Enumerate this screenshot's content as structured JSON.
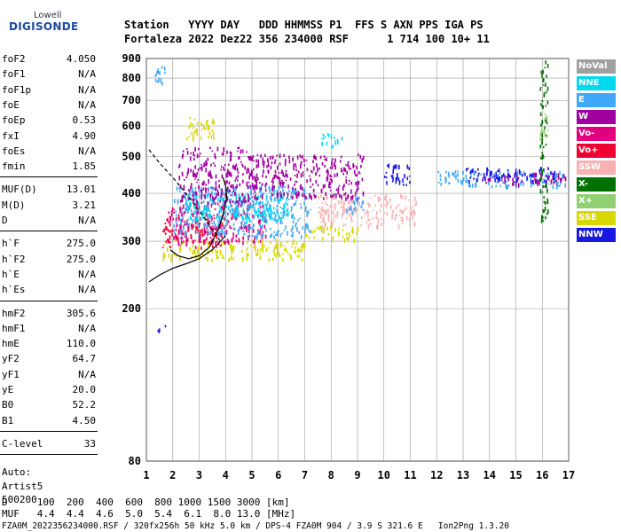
{
  "logo": {
    "top": "Lowell",
    "main": "DIGISONDE"
  },
  "header": {
    "line1": "Station   YYYY DAY   DDD HHMMSS P1  FFS S AXN PPS IGA PS",
    "line2": "Fortaleza 2022 Dez22 356 234000 RSF      1 714 100 10+ 11"
  },
  "params": {
    "g1": [
      [
        "foF2",
        "4.050"
      ],
      [
        "foF1",
        "N/A"
      ],
      [
        "foF1p",
        "N/A"
      ],
      [
        "foE",
        "N/A"
      ],
      [
        "foEp",
        "0.53"
      ],
      [
        "fxI",
        "4.90"
      ],
      [
        "foEs",
        "N/A"
      ],
      [
        "fmin",
        "1.85"
      ]
    ],
    "g2": [
      [
        "MUF(D)",
        "13.01"
      ],
      [
        "M(D)",
        "3.21"
      ],
      [
        "D",
        "N/A"
      ]
    ],
    "g3": [
      [
        "h`F",
        "275.0"
      ],
      [
        "h`F2",
        "275.0"
      ],
      [
        "h`E",
        "N/A"
      ],
      [
        "h`Es",
        "N/A"
      ]
    ],
    "g4": [
      [
        "hmF2",
        "305.6"
      ],
      [
        "hmF1",
        "N/A"
      ],
      [
        "hmE",
        "110.0"
      ],
      [
        "yF2",
        "64.7"
      ],
      [
        "yF1",
        "N/A"
      ],
      [
        "yE",
        "20.0"
      ],
      [
        "B0",
        "52.2"
      ],
      [
        "B1",
        "4.50"
      ]
    ],
    "g5": [
      [
        "C-level",
        "33"
      ]
    ],
    "auto": [
      "Auto:",
      "Artist5",
      "500200"
    ]
  },
  "legend": [
    {
      "label": "NoVal",
      "color": "#a0a0a0"
    },
    {
      "label": "NNE",
      "color": "#00d8f0"
    },
    {
      "label": "E",
      "color": "#40a8f8"
    },
    {
      "label": "W",
      "color": "#a000a0"
    },
    {
      "label": "Vo-",
      "color": "#e00080"
    },
    {
      "label": "Vo+",
      "color": "#f00030"
    },
    {
      "label": "SSW",
      "color": "#f8b0b0"
    },
    {
      "label": "X-",
      "color": "#007000"
    },
    {
      "label": "X+",
      "color": "#90d070"
    },
    {
      "label": "SSE",
      "color": "#d8d800"
    },
    {
      "label": "NNW",
      "color": "#1818e0"
    }
  ],
  "footer": {
    "d_line": "D     100  200  400  600  800 1000 1500 3000 [km]",
    "muf_line": "MUF   4.4  4.4  4.6  5.0  5.4  6.1  8.0 13.0 [MHz]",
    "info_line": "FZA0M_2022356234000.RSF / 320fx256h 50 kHz 5.0 km / DPS-4 FZA0M 904 / 3.9 S 321.6 E   Ion2Png 1.3.20"
  },
  "chart_data": {
    "type": "scatter",
    "x_ticks": [
      1,
      2,
      3,
      4,
      5,
      6,
      7,
      8,
      9,
      10,
      11,
      12,
      13,
      14,
      15,
      16,
      17
    ],
    "y_ticks": [
      80,
      200,
      300,
      400,
      500,
      600,
      700,
      800,
      900
    ],
    "xlim": [
      1,
      17
    ],
    "ylim": [
      80,
      900
    ],
    "yscale": "log",
    "grid": true,
    "legend_position": "right",
    "clusters": [
      {
        "series": "SSE",
        "x": [
          1.6,
          7.0
        ],
        "y": [
          270,
          305
        ]
      },
      {
        "series": "SSE",
        "x": [
          7.0,
          9.0
        ],
        "y": [
          305,
          330
        ]
      },
      {
        "series": "SSE",
        "x": [
          2.5,
          3.6
        ],
        "y": [
          560,
          640
        ]
      },
      {
        "series": "Vo+",
        "x": [
          1.6,
          4.0
        ],
        "y": [
          290,
          350
        ]
      },
      {
        "series": "Vo-",
        "x": [
          1.8,
          5.5
        ],
        "y": [
          300,
          380
        ]
      },
      {
        "series": "E",
        "x": [
          2.0,
          7.2
        ],
        "y": [
          310,
          420
        ]
      },
      {
        "series": "NNE",
        "x": [
          2.5,
          6.5
        ],
        "y": [
          340,
          400
        ]
      },
      {
        "series": "W",
        "x": [
          2.2,
          5.0
        ],
        "y": [
          380,
          530
        ]
      },
      {
        "series": "W",
        "x": [
          5.0,
          9.2
        ],
        "y": [
          390,
          510
        ]
      },
      {
        "series": "SSW",
        "x": [
          7.5,
          11.2
        ],
        "y": [
          330,
          400
        ]
      },
      {
        "series": "NNE",
        "x": [
          7.6,
          8.4
        ],
        "y": [
          530,
          575
        ]
      },
      {
        "series": "E",
        "x": [
          8.5,
          9.2
        ],
        "y": [
          360,
          400
        ]
      },
      {
        "series": "NNW",
        "x": [
          10.0,
          11.0
        ],
        "y": [
          420,
          480
        ]
      },
      {
        "series": "E",
        "x": [
          12.0,
          16.9
        ],
        "y": [
          420,
          460
        ]
      },
      {
        "series": "W",
        "x": [
          13.5,
          16.9
        ],
        "y": [
          425,
          455
        ]
      },
      {
        "series": "NNW",
        "x": [
          13.0,
          16.5
        ],
        "y": [
          430,
          470
        ]
      },
      {
        "series": "E",
        "x": [
          1.3,
          1.7
        ],
        "y": [
          780,
          900
        ]
      },
      {
        "series": "NNW",
        "x": [
          1.4,
          2.0
        ],
        "y": [
          175,
          182
        ]
      },
      {
        "series": "X-",
        "x": [
          15.9,
          16.2
        ],
        "y": [
          330,
          900
        ]
      },
      {
        "series": "X+",
        "x": [
          15.9,
          16.3
        ],
        "y": [
          560,
          650
        ]
      }
    ],
    "curves": [
      {
        "name": "dashed",
        "x": [
          1.1,
          1.5,
          2.0,
          2.5,
          3.0,
          3.4,
          3.8
        ],
        "y": [
          520,
          480,
          440,
          400,
          360,
          330,
          300
        ]
      },
      {
        "name": "profile",
        "x": [
          1.1,
          1.5,
          2.0,
          2.5,
          3.0,
          3.5,
          4.0
        ],
        "y": [
          235,
          245,
          255,
          262,
          270,
          285,
          310
        ]
      },
      {
        "name": "trace",
        "x": [
          1.9,
          2.2,
          2.6,
          3.0,
          3.4,
          3.7,
          3.9,
          4.05,
          4.0,
          3.9
        ],
        "y": [
          285,
          275,
          270,
          275,
          290,
          320,
          350,
          390,
          420,
          440
        ]
      }
    ]
  }
}
